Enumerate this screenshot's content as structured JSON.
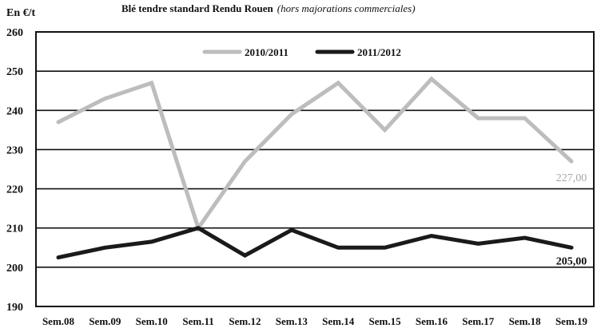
{
  "unit_label": "En €/t",
  "title": "Blé tendre standard Rendu Rouen",
  "subtitle": "(hors majorations commerciales)",
  "chart_data": {
    "type": "line",
    "title": "Blé tendre standard Rendu Rouen (hors majorations commerciales)",
    "ylabel": "En €/t",
    "xlabel": "",
    "ylim": [
      190,
      260
    ],
    "yticks": [
      190,
      200,
      210,
      220,
      230,
      240,
      250,
      260
    ],
    "grid": "horizontal",
    "legend_position": "top-center",
    "categories": [
      "Sem.08",
      "Sem.09",
      "Sem.10",
      "Sem.11",
      "Sem.12",
      "Sem.13",
      "Sem.14",
      "Sem.15",
      "Sem.16",
      "Sem.17",
      "Sem.18",
      "Sem.19"
    ],
    "series": [
      {
        "name": "2010/2011",
        "color": "#bdbdbd",
        "values": [
          237,
          243,
          247,
          210,
          227,
          239,
          247,
          235,
          248,
          238,
          238,
          227
        ],
        "end_label": "227,00"
      },
      {
        "name": "2011/2012",
        "color": "#1a1a1a",
        "values": [
          202.5,
          205,
          206.5,
          210,
          203,
          209.5,
          205,
          205,
          208,
          206,
          207.5,
          205
        ],
        "end_label": "205,00"
      }
    ]
  }
}
